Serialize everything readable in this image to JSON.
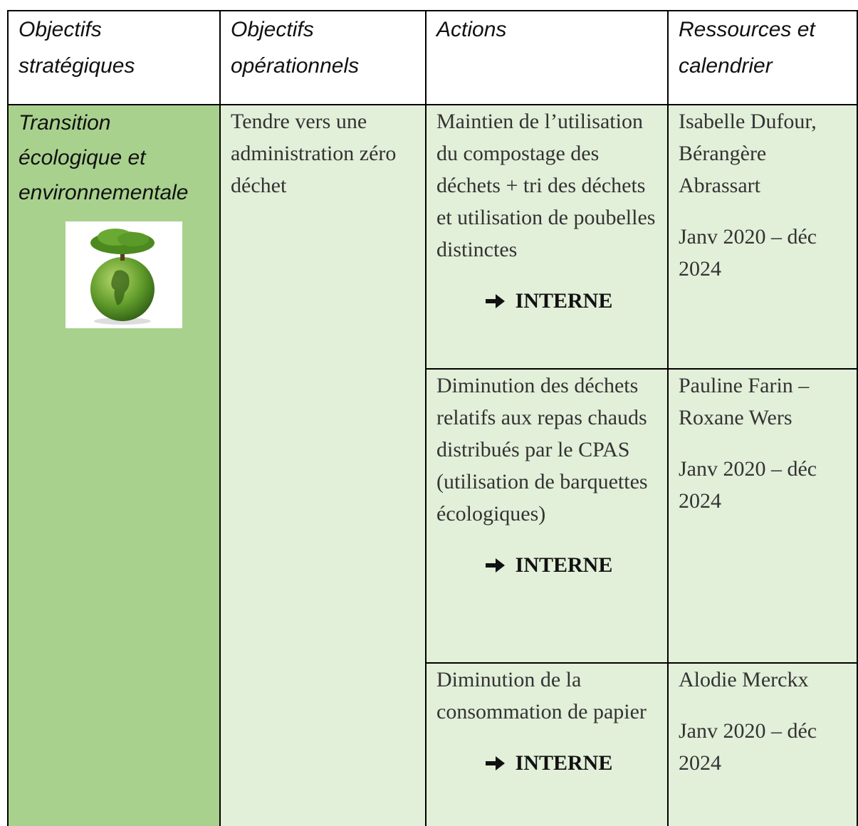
{
  "table": {
    "headers": [
      "Objectifs stratégiques",
      "Objectifs opérationnels",
      "Actions",
      "Ressources et calendrier"
    ],
    "strategic": "Transition écologique et environnementale",
    "operational": "Tendre vers une administration zéro déchet",
    "actions": [
      {
        "text": "Maintien de l’utilisation du compostage des déchets + tri des déchets et utilisation de poubelles distinctes",
        "tag": "INTERNE",
        "resources": "Isabelle Dufour, Bérangère Abrassart",
        "calendar": "Janv 2020 – déc 2024"
      },
      {
        "text": "Diminution des déchets relatifs aux repas chauds distribués par le CPAS (utilisation de barquettes écologiques)",
        "tag": "INTERNE",
        "resources": "Pauline Farin – Roxane Wers",
        "calendar": "Janv 2020 – déc 2024"
      },
      {
        "text": "Diminution de la consommation de papier",
        "tag": "INTERNE",
        "resources": "Alodie Merckx",
        "calendar": "Janv 2020 – déc 2024"
      }
    ]
  }
}
